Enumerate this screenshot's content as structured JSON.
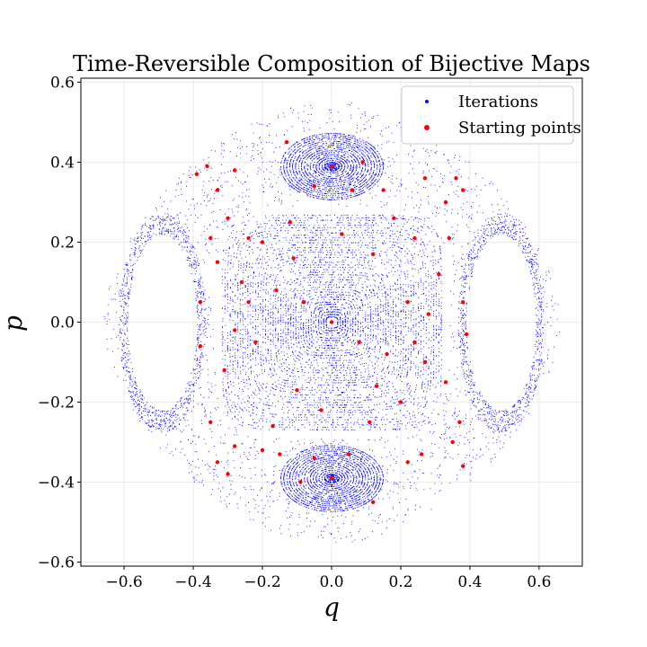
{
  "chart_data": {
    "type": "scatter",
    "title": "Time-Reversible Composition of Bijective Maps",
    "xlabel": "q",
    "ylabel": "p",
    "xlim": [
      -0.725,
      0.725
    ],
    "ylim": [
      -0.61,
      0.61
    ],
    "xticks": [
      -0.6,
      -0.4,
      -0.2,
      0.0,
      0.2,
      0.4,
      0.6
    ],
    "yticks": [
      -0.6,
      -0.4,
      -0.2,
      0.0,
      0.2,
      0.4,
      0.6
    ],
    "xtick_labels": [
      "−0.6",
      "−0.4",
      "−0.2",
      "0.0",
      "0.2",
      "0.4",
      "0.6"
    ],
    "ytick_labels": [
      "−0.6",
      "−0.4",
      "−0.2",
      "0.0",
      "0.2",
      "0.4",
      "0.6"
    ],
    "grid": true,
    "legend_position": "top-right",
    "series": [
      {
        "name": "Iterations",
        "color": "#0000ff",
        "marker": "dot",
        "structure": {
          "central_island_center": [
            0.0,
            0.0
          ],
          "central_island_max_radius": 0.26,
          "upper_island_center": [
            0.0,
            0.39
          ],
          "lower_island_center": [
            0.0,
            -0.39
          ],
          "side_island_centers": [
            [
              -0.49,
              0.0
            ],
            [
              0.49,
              0.0
            ]
          ],
          "outer_extent_q": 0.66,
          "outer_extent_p": 0.55
        }
      },
      {
        "name": "Starting points",
        "color": "#ff0000",
        "marker": "dot",
        "points": [
          [
            0.0,
            0.39
          ],
          [
            0.0,
            0.0
          ],
          [
            0.0,
            -0.39
          ],
          [
            -0.39,
            0.37
          ],
          [
            -0.36,
            0.39
          ],
          [
            -0.33,
            0.33
          ],
          [
            -0.28,
            0.38
          ],
          [
            -0.3,
            0.26
          ],
          [
            -0.35,
            0.21
          ],
          [
            -0.38,
            0.05
          ],
          [
            -0.38,
            -0.06
          ],
          [
            -0.35,
            -0.25
          ],
          [
            -0.33,
            -0.35
          ],
          [
            -0.28,
            -0.31
          ],
          [
            -0.3,
            -0.38
          ],
          [
            0.27,
            0.36
          ],
          [
            0.33,
            0.3
          ],
          [
            0.36,
            0.36
          ],
          [
            0.38,
            0.33
          ],
          [
            0.34,
            0.21
          ],
          [
            0.38,
            0.05
          ],
          [
            0.39,
            -0.03
          ],
          [
            0.37,
            -0.25
          ],
          [
            0.35,
            -0.3
          ],
          [
            0.38,
            -0.36
          ],
          [
            0.26,
            -0.33
          ],
          [
            0.22,
            -0.35
          ],
          [
            -0.2,
            -0.32
          ],
          [
            -0.24,
            0.21
          ],
          [
            0.24,
            0.21
          ],
          [
            -0.11,
            0.16
          ],
          [
            0.12,
            0.17
          ],
          [
            -0.1,
            -0.17
          ],
          [
            0.13,
            -0.16
          ],
          [
            -0.05,
            0.34
          ],
          [
            0.06,
            0.33
          ],
          [
            -0.05,
            -0.34
          ],
          [
            0.05,
            -0.33
          ],
          [
            -0.16,
            0.08
          ],
          [
            0.16,
            -0.08
          ],
          [
            -0.22,
            -0.05
          ],
          [
            0.22,
            0.05
          ],
          [
            -0.26,
            0.1
          ],
          [
            0.27,
            -0.1
          ],
          [
            -0.08,
            0.05
          ],
          [
            0.08,
            -0.05
          ],
          [
            -0.17,
            -0.26
          ],
          [
            0.18,
            0.26
          ],
          [
            -0.12,
            0.25
          ],
          [
            0.11,
            -0.25
          ],
          [
            0.31,
            0.12
          ],
          [
            -0.31,
            -0.12
          ],
          [
            0.2,
            -0.2
          ],
          [
            -0.2,
            0.2
          ],
          [
            0.09,
            0.4
          ],
          [
            -0.09,
            -0.4
          ],
          [
            -0.13,
            0.45
          ],
          [
            0.12,
            -0.45
          ],
          [
            0.28,
            0.02
          ],
          [
            -0.28,
            -0.02
          ],
          [
            0.03,
            0.22
          ],
          [
            -0.03,
            -0.22
          ],
          [
            0.15,
            0.33
          ],
          [
            -0.15,
            -0.33
          ],
          [
            0.24,
            -0.05
          ],
          [
            -0.24,
            0.05
          ],
          [
            0.33,
            -0.15
          ],
          [
            -0.33,
            0.15
          ]
        ]
      }
    ]
  }
}
